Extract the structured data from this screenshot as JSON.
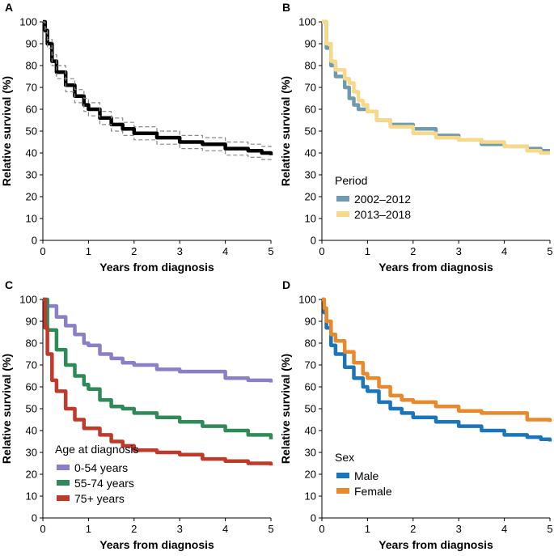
{
  "chart_data": [
    {
      "panel": "A",
      "type": "line",
      "xlabel": "Years from diagnosis",
      "ylabel": "Relative survival (%)",
      "xlim": [
        0,
        5
      ],
      "ylim": [
        0,
        100
      ],
      "xticks": [
        "0",
        "1",
        "2",
        "3",
        "4",
        "5"
      ],
      "yticks": [
        "0",
        "10",
        "20",
        "30",
        "40",
        "50",
        "60",
        "70",
        "80",
        "90",
        "100"
      ],
      "legend_title": "",
      "series": [
        {
          "name": "",
          "role": "estimate",
          "color": "#000000",
          "x": [
            0,
            0.05,
            0.1,
            0.2,
            0.3,
            0.5,
            0.7,
            0.9,
            1.0,
            1.25,
            1.5,
            1.75,
            2.0,
            2.5,
            3.0,
            3.5,
            4.0,
            4.5,
            4.8,
            5.0
          ],
          "y": [
            100,
            96,
            90,
            82,
            77,
            71,
            66,
            62,
            60,
            56,
            53,
            51,
            49,
            47,
            45,
            44,
            42,
            41,
            40,
            39
          ]
        },
        {
          "name": "",
          "role": "ci-upper",
          "color": "#888888",
          "x": [
            0,
            0.05,
            0.1,
            0.2,
            0.3,
            0.5,
            0.7,
            0.9,
            1.0,
            1.25,
            1.5,
            1.75,
            2.0,
            2.5,
            3.0,
            3.5,
            4.0,
            4.5,
            4.8,
            5.0
          ],
          "y": [
            100,
            97,
            92,
            85,
            80,
            74,
            69,
            65,
            63,
            59,
            56,
            54,
            52,
            50,
            48,
            47,
            45,
            44,
            43,
            42
          ]
        },
        {
          "name": "",
          "role": "ci-lower",
          "color": "#888888",
          "x": [
            0,
            0.05,
            0.1,
            0.2,
            0.3,
            0.5,
            0.7,
            0.9,
            1.0,
            1.25,
            1.5,
            1.75,
            2.0,
            2.5,
            3.0,
            3.5,
            4.0,
            4.5,
            4.8,
            5.0
          ],
          "y": [
            100,
            95,
            88,
            80,
            74,
            68,
            63,
            59,
            57,
            53,
            50,
            48,
            46,
            44,
            42,
            41,
            39,
            38,
            37,
            36
          ]
        }
      ]
    },
    {
      "panel": "B",
      "type": "line",
      "xlabel": "Years from diagnosis",
      "ylabel": "Relative survival (%)",
      "xlim": [
        0,
        5
      ],
      "ylim": [
        0,
        100
      ],
      "xticks": [
        "0",
        "1",
        "2",
        "3",
        "4",
        "5"
      ],
      "yticks": [
        "0",
        "10",
        "20",
        "30",
        "40",
        "50",
        "60",
        "70",
        "80",
        "90",
        "100"
      ],
      "legend_title": "Period",
      "series": [
        {
          "name": "2002–2012",
          "color": "#6f9bb0",
          "x": [
            0,
            0.1,
            0.2,
            0.3,
            0.5,
            0.6,
            0.7,
            0.8,
            0.9,
            1.0,
            1.2,
            1.5,
            2.0,
            2.5,
            3.0,
            3.5,
            4.0,
            4.5,
            4.8,
            5.0
          ],
          "y": [
            100,
            88,
            80,
            75,
            70,
            65,
            62,
            60,
            60,
            59,
            55,
            53,
            51,
            48,
            46,
            44,
            43,
            42,
            41,
            41
          ]
        },
        {
          "name": "2013–2018",
          "color": "#f8d98a",
          "x": [
            0,
            0.1,
            0.2,
            0.3,
            0.5,
            0.6,
            0.7,
            0.8,
            0.9,
            1.0,
            1.2,
            1.5,
            2.0,
            2.5,
            3.0,
            3.5,
            4.0,
            4.5,
            4.8,
            5.0
          ],
          "y": [
            100,
            90,
            82,
            78,
            74,
            72,
            68,
            64,
            62,
            59,
            55,
            52,
            49,
            47,
            46,
            45,
            43,
            41,
            40,
            40
          ]
        }
      ]
    },
    {
      "panel": "C",
      "type": "line",
      "xlabel": "Years from diagnosis",
      "ylabel": "Relative survival (%)",
      "xlim": [
        0,
        5
      ],
      "ylim": [
        0,
        100
      ],
      "xticks": [
        "0",
        "1",
        "2",
        "3",
        "4",
        "5"
      ],
      "yticks": [
        "0",
        "10",
        "20",
        "30",
        "40",
        "50",
        "60",
        "70",
        "80",
        "90",
        "100"
      ],
      "legend_title": "Age at diagnosis",
      "series": [
        {
          "name": "0-54 years",
          "color": "#8b7fc8",
          "x": [
            0,
            0.1,
            0.3,
            0.5,
            0.7,
            0.9,
            1.0,
            1.25,
            1.5,
            1.75,
            2.0,
            2.5,
            3.0,
            3.5,
            4.0,
            4.5,
            5.0
          ],
          "y": [
            100,
            97,
            92,
            88,
            84,
            80,
            79,
            75,
            73,
            71,
            70,
            68,
            67,
            67,
            64,
            63,
            62
          ]
        },
        {
          "name": "55-74 years",
          "color": "#2e8b57",
          "x": [
            0,
            0.1,
            0.3,
            0.5,
            0.7,
            0.9,
            1.0,
            1.25,
            1.5,
            1.75,
            2.0,
            2.5,
            3.0,
            3.5,
            4.0,
            4.5,
            5.0
          ],
          "y": [
            100,
            86,
            77,
            70,
            65,
            61,
            59,
            54,
            51,
            50,
            48,
            46,
            44,
            42,
            40,
            38,
            36
          ]
        },
        {
          "name": "75+ years",
          "color": "#c0392b",
          "x": [
            0,
            0.05,
            0.1,
            0.2,
            0.3,
            0.5,
            0.7,
            0.9,
            1.0,
            1.25,
            1.5,
            1.75,
            2.0,
            2.5,
            3.0,
            3.5,
            4.0,
            4.5,
            5.0
          ],
          "y": [
            100,
            87,
            75,
            63,
            58,
            50,
            45,
            41,
            41,
            38,
            35,
            33,
            31,
            30,
            29,
            27,
            26,
            25,
            24
          ]
        }
      ]
    },
    {
      "panel": "D",
      "type": "line",
      "xlabel": "Years from diagnosis",
      "ylabel": "Relative survival (%)",
      "xlim": [
        0,
        5
      ],
      "ylim": [
        0,
        100
      ],
      "xticks": [
        "0",
        "1",
        "2",
        "3",
        "4",
        "5"
      ],
      "yticks": [
        "0",
        "10",
        "20",
        "30",
        "40",
        "50",
        "60",
        "70",
        "80",
        "90",
        "100"
      ],
      "legend_title": "Sex",
      "series": [
        {
          "name": "Male",
          "color": "#1a75bc",
          "x": [
            0,
            0.05,
            0.1,
            0.2,
            0.3,
            0.5,
            0.7,
            0.9,
            1.0,
            1.25,
            1.5,
            1.75,
            2.0,
            2.5,
            3.0,
            3.5,
            4.0,
            4.5,
            4.8,
            5.0
          ],
          "y": [
            100,
            94,
            87,
            79,
            75,
            69,
            64,
            60,
            58,
            53,
            50,
            48,
            46,
            44,
            42,
            40,
            38,
            37,
            36,
            35
          ]
        },
        {
          "name": "Female",
          "color": "#e8892b",
          "x": [
            0,
            0.05,
            0.1,
            0.2,
            0.3,
            0.5,
            0.7,
            0.9,
            1.0,
            1.25,
            1.5,
            1.75,
            2.0,
            2.5,
            3.0,
            3.5,
            4.0,
            4.5,
            4.8,
            5.0
          ],
          "y": [
            100,
            96,
            90,
            84,
            81,
            76,
            71,
            66,
            64,
            60,
            56,
            54,
            53,
            51,
            49,
            48,
            48,
            45,
            45,
            44
          ]
        }
      ]
    }
  ]
}
